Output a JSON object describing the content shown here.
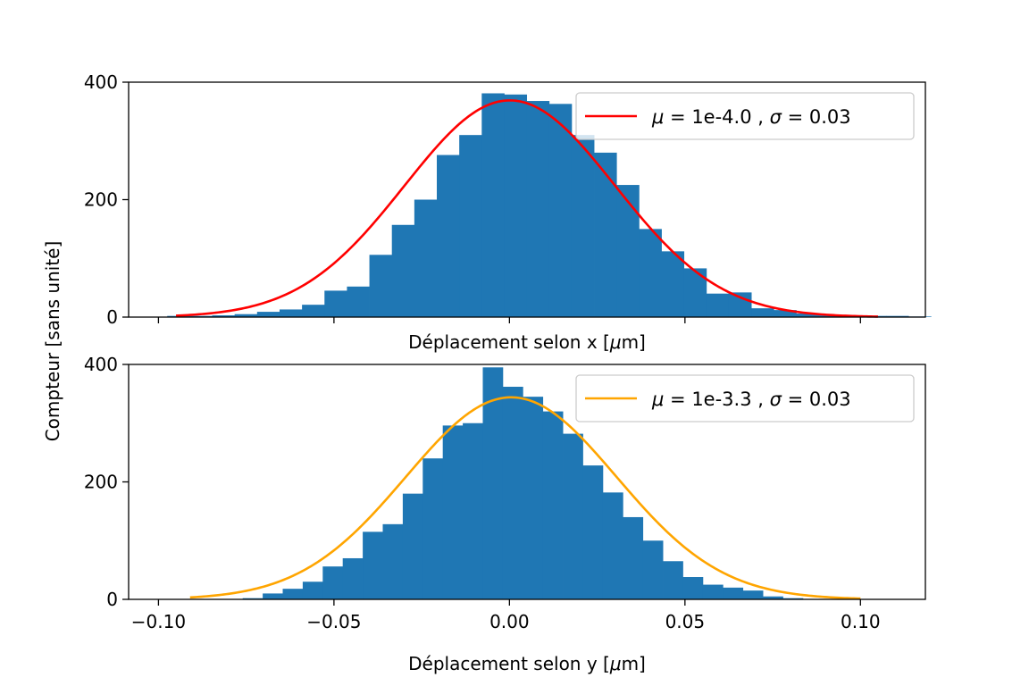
{
  "figure": {
    "ylabel": "Compteur [sans unité]"
  },
  "chart_data": [
    {
      "type": "bar",
      "panel": "top",
      "xlabel_parts": [
        "Déplacement selon x [",
        "μ",
        "m]"
      ],
      "xlim": [
        -0.1085,
        0.1185
      ],
      "ylim": [
        0,
        400
      ],
      "xticks": [
        -0.1,
        -0.05,
        0.0,
        0.05,
        0.1
      ],
      "xtick_labels_visible": false,
      "yticks": [
        0,
        200,
        400
      ],
      "ytick_labels": [
        "0",
        "200",
        "400"
      ],
      "hist_color": "#1f77b4",
      "bin_width": 0.0064,
      "bin_start": -0.0975,
      "counts": [
        2,
        2,
        3,
        5,
        9,
        13,
        21,
        45,
        52,
        106,
        157,
        200,
        276,
        310,
        381,
        379,
        368,
        363,
        310,
        280,
        225,
        150,
        112,
        83,
        40,
        42,
        15,
        12,
        6,
        3,
        2,
        2,
        2,
        1
      ],
      "fit": {
        "mu": 0.0001,
        "sigma": 0.03,
        "amplitude": 369,
        "x_range": [
          -0.095,
          0.105
        ],
        "color": "#ff0000"
      },
      "legend": {
        "position": "top-right",
        "parts": [
          "μ",
          " = 1e-4.0 , ",
          "σ",
          " = 0.03"
        ]
      }
    },
    {
      "type": "bar",
      "panel": "bottom",
      "xlabel_parts": [
        "Déplacement selon y [",
        "μ",
        "m]"
      ],
      "xlim": [
        -0.1085,
        0.1185
      ],
      "ylim": [
        0,
        400
      ],
      "xticks": [
        -0.1,
        -0.05,
        0.0,
        0.05,
        0.1
      ],
      "xtick_labels": [
        "−0.10",
        "−0.05",
        "0.00",
        "0.05",
        "0.10"
      ],
      "yticks": [
        0,
        200,
        400
      ],
      "ytick_labels": [
        "0",
        "200",
        "400"
      ],
      "hist_color": "#1f77b4",
      "bin_width": 0.0057,
      "bin_start": -0.076,
      "counts": [
        2,
        10,
        18,
        30,
        56,
        70,
        115,
        128,
        180,
        240,
        296,
        300,
        395,
        362,
        345,
        320,
        282,
        228,
        182,
        140,
        100,
        65,
        38,
        25,
        20,
        15,
        5,
        2
      ],
      "fit": {
        "mu": 0.0005,
        "sigma": 0.03,
        "amplitude": 344,
        "x_range": [
          -0.091,
          0.1
        ],
        "color": "#ffa500"
      },
      "legend": {
        "position": "top-right",
        "parts": [
          "μ",
          " = 1e-3.3 , ",
          "σ",
          " = 0.03"
        ]
      }
    }
  ]
}
